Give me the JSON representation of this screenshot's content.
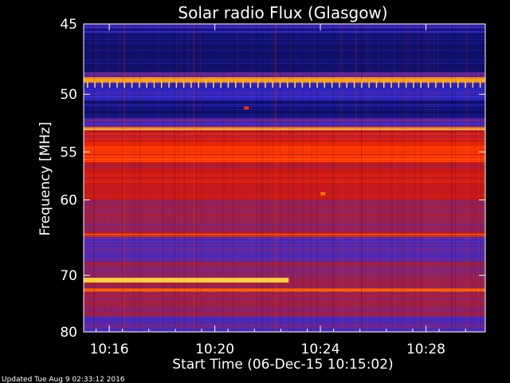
{
  "chart_data": {
    "type": "heatmap",
    "title": "Solar radio Flux (Glasgow)",
    "xlabel": "Start Time (06-Dec-15 10:15:02)",
    "ylabel": "Frequency [MHz]",
    "x_ticks": [
      "10:16",
      "10:20",
      "10:24",
      "10:28"
    ],
    "x_tick_minutes": [
      16,
      20,
      24,
      28
    ],
    "x_range_minutes": [
      15.03,
      30.25
    ],
    "y_ticks": [
      45,
      50,
      55,
      60,
      70,
      80
    ],
    "y_range": [
      45,
      80
    ],
    "y_scale": "reciprocal",
    "grid": false,
    "colormap": [
      "#10106a",
      "#2a2ad6",
      "#5a2ab0",
      "#9a2050",
      "#c81818",
      "#ff3000",
      "#ff7800",
      "#ffd040"
    ],
    "bands": [
      {
        "from": 45.0,
        "to": 45.6,
        "level": 1
      },
      {
        "from": 45.6,
        "to": 48.3,
        "level": 0
      },
      {
        "from": 48.3,
        "to": 48.7,
        "level": 2
      },
      {
        "from": 48.7,
        "to": 49.1,
        "level": 7
      },
      {
        "from": 49.1,
        "to": 50.5,
        "level": 1
      },
      {
        "from": 50.5,
        "to": 52.0,
        "level": 0
      },
      {
        "from": 52.0,
        "to": 52.7,
        "level": 2
      },
      {
        "from": 52.7,
        "to": 53.0,
        "level": 6
      },
      {
        "from": 53.0,
        "to": 54.0,
        "level": 4
      },
      {
        "from": 54.0,
        "to": 56.0,
        "level": 5
      },
      {
        "from": 56.0,
        "to": 60.0,
        "level": 4
      },
      {
        "from": 60.0,
        "to": 64.0,
        "level": 3
      },
      {
        "from": 64.0,
        "to": 64.5,
        "level": 5
      },
      {
        "from": 64.5,
        "to": 68.0,
        "level": 2
      },
      {
        "from": 68.0,
        "to": 72.0,
        "level": 3
      },
      {
        "from": 72.0,
        "to": 72.6,
        "level": 5
      },
      {
        "from": 72.6,
        "to": 77.0,
        "level": 3
      },
      {
        "from": 77.0,
        "to": 80.0,
        "level": 2
      }
    ],
    "features": [
      {
        "type": "burst",
        "freq_from": 70.5,
        "freq_to": 71.0,
        "t_from": 15.03,
        "t_to": 22.8,
        "level": 7
      },
      {
        "type": "spike",
        "freq": 59.3,
        "t": 24.1,
        "level": 6
      },
      {
        "type": "spike",
        "freq": 51.1,
        "t": 21.2,
        "level": 5
      }
    ]
  },
  "footer": {
    "updated": "Updated Tue Aug  9 02:33:12 2016"
  }
}
